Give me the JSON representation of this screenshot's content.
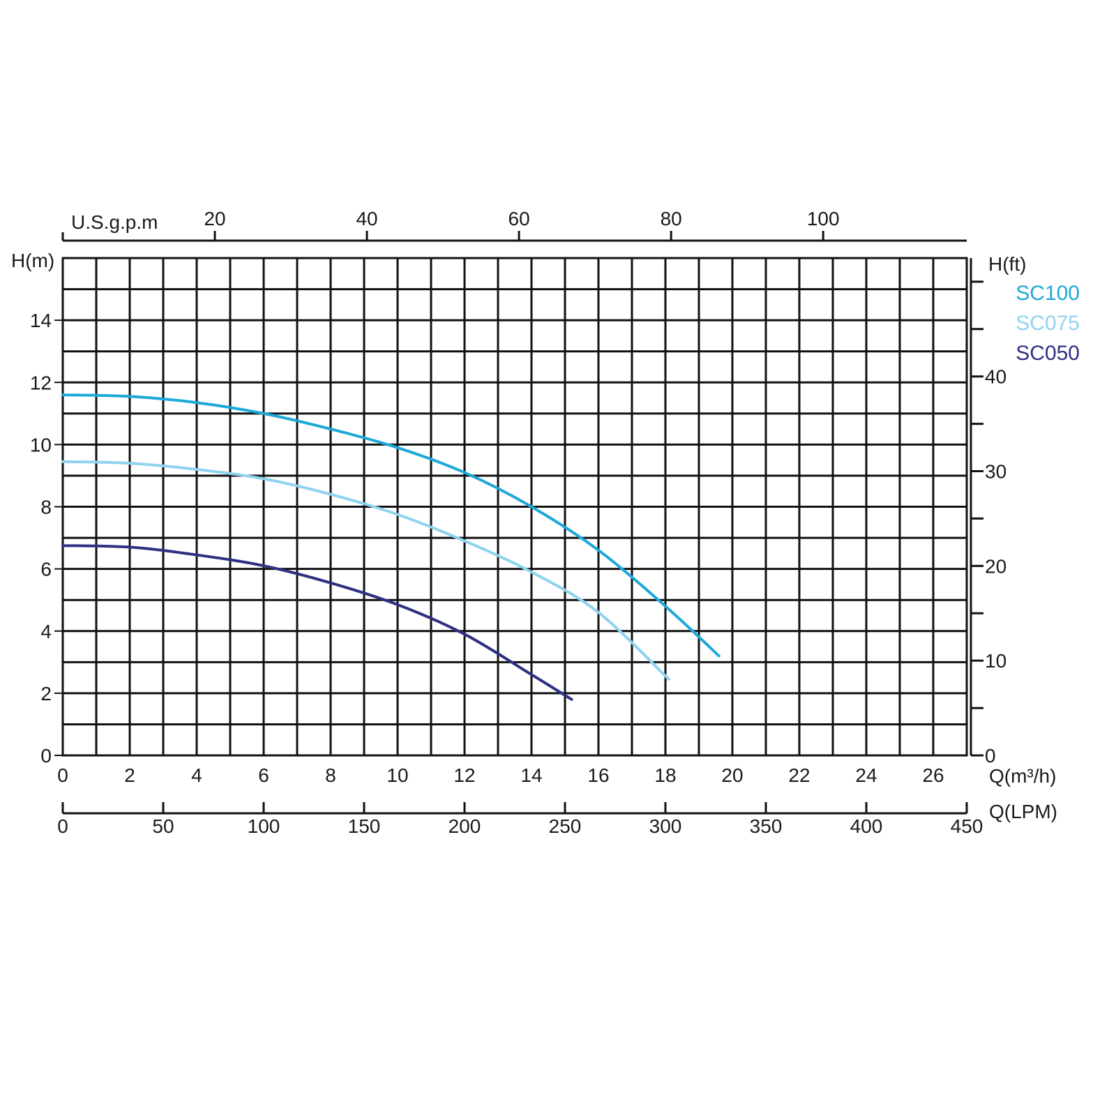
{
  "chart_data": {
    "type": "line",
    "title": "",
    "xlabel": "Q(m³/h)",
    "ylabel": "H(m)",
    "right_axis_label": "H(ft)",
    "top_axis_label": "U.S.g.p.m",
    "bottom_axis_label": "Q(LPM)",
    "xlim": [
      0,
      27
    ],
    "ylim": [
      0,
      16
    ],
    "grid": true,
    "legend_position": "top-right",
    "x_ticks": [
      "0",
      "2",
      "4",
      "6",
      "8",
      "10",
      "12",
      "14",
      "16",
      "18",
      "20",
      "22",
      "24",
      "26"
    ],
    "y_ticks": [
      "0",
      "2",
      "4",
      "6",
      "8",
      "10",
      "12",
      "14"
    ],
    "right_ticks": [
      "0",
      "10",
      "20",
      "30",
      "40"
    ],
    "top_ticks": [
      "20",
      "40",
      "60",
      "80",
      "100"
    ],
    "bottom_ticks": [
      "0",
      "50",
      "100",
      "150",
      "200",
      "250",
      "300",
      "350",
      "400",
      "450"
    ],
    "series": [
      {
        "name": "SC100",
        "color": "#1ea8d8",
        "x": [
          0,
          2,
          4,
          6,
          8,
          10,
          12,
          14,
          16,
          18,
          19.6
        ],
        "y": [
          11.6,
          11.55,
          11.35,
          11.0,
          10.5,
          9.9,
          9.1,
          8.0,
          6.6,
          4.8,
          3.2
        ]
      },
      {
        "name": "SC075",
        "color": "#8fd3ef",
        "x": [
          0,
          2,
          4,
          6,
          8,
          10,
          12,
          14,
          16,
          18.1
        ],
        "y": [
          9.45,
          9.4,
          9.2,
          8.9,
          8.4,
          7.75,
          6.9,
          5.9,
          4.6,
          2.45
        ]
      },
      {
        "name": "SC050",
        "color": "#2e3082",
        "x": [
          0,
          2,
          4,
          6,
          8,
          10,
          12,
          14,
          15.2
        ],
        "y": [
          6.75,
          6.7,
          6.45,
          6.1,
          5.55,
          4.85,
          3.9,
          2.6,
          1.8
        ]
      }
    ]
  }
}
